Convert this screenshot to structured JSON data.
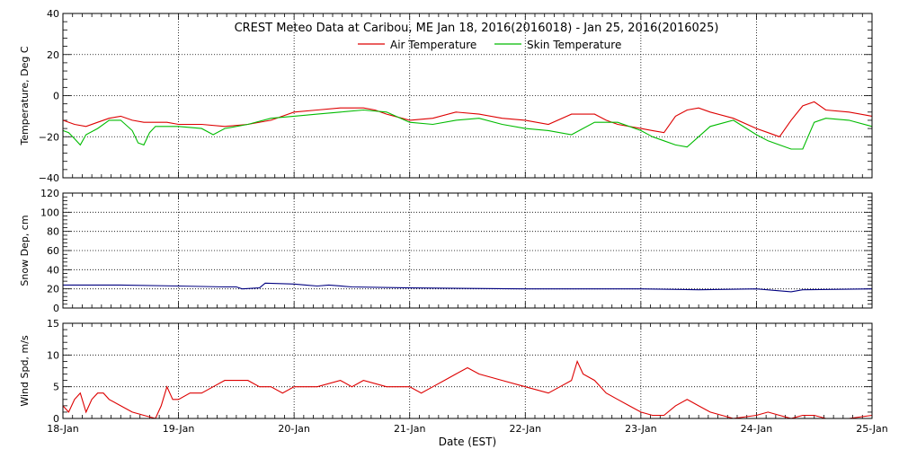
{
  "chart_data": {
    "title": "CREST Meteo Data at Caribou, ME   Jan 18, 2016(2016018) - Jan 25, 2016(2016025)",
    "xlabel": "Date (EST)",
    "x_ticks": [
      "18-Jan",
      "19-Jan",
      "20-Jan",
      "21-Jan",
      "22-Jan",
      "23-Jan",
      "24-Jan",
      "25-Jan"
    ],
    "x_range": [
      18,
      25
    ],
    "grid": true,
    "panels": [
      {
        "type": "line",
        "ylabel": "Temperature, Deg C",
        "ylim": [
          -40,
          40
        ],
        "y_ticks": [
          "40",
          "20",
          "0",
          "−20",
          "−40"
        ],
        "legend": "top-center",
        "series": [
          {
            "name": "Air Temperature",
            "color": "#dd0000",
            "x": [
              18.0,
              18.1,
              18.2,
              18.3,
              18.4,
              18.5,
              18.6,
              18.7,
              18.8,
              18.9,
              19.0,
              19.2,
              19.4,
              19.6,
              19.8,
              20.0,
              20.2,
              20.4,
              20.6,
              20.7,
              20.8,
              21.0,
              21.2,
              21.4,
              21.6,
              21.8,
              22.0,
              22.2,
              22.4,
              22.6,
              22.7,
              22.8,
              23.0,
              23.1,
              23.2,
              23.3,
              23.4,
              23.5,
              23.6,
              23.8,
              24.0,
              24.1,
              24.2,
              24.3,
              24.4,
              24.5,
              24.6,
              24.8,
              25.0
            ],
            "values": [
              -12,
              -14,
              -15,
              -13,
              -11,
              -10,
              -12,
              -13,
              -13,
              -13,
              -14,
              -14,
              -15,
              -14,
              -12,
              -8,
              -7,
              -6,
              -6,
              -7,
              -9,
              -12,
              -11,
              -8,
              -9,
              -11,
              -12,
              -14,
              -9,
              -9,
              -12,
              -14,
              -16,
              -17,
              -18,
              -10,
              -7,
              -6,
              -8,
              -11,
              -16,
              -18,
              -20,
              -12,
              -5,
              -3,
              -7,
              -8,
              -10
            ]
          },
          {
            "name": "Skin Temperature",
            "color": "#00bb00",
            "x": [
              18.0,
              18.05,
              18.1,
              18.15,
              18.2,
              18.3,
              18.4,
              18.5,
              18.6,
              18.65,
              18.7,
              18.75,
              18.8,
              19.0,
              19.2,
              19.3,
              19.4,
              19.6,
              19.8,
              20.0,
              20.2,
              20.4,
              20.6,
              20.8,
              21.0,
              21.2,
              21.4,
              21.6,
              21.8,
              22.0,
              22.2,
              22.4,
              22.6,
              22.8,
              23.0,
              23.1,
              23.2,
              23.3,
              23.4,
              23.6,
              23.8,
              24.0,
              24.1,
              24.2,
              24.3,
              24.4,
              24.5,
              24.6,
              24.8,
              25.0
            ],
            "values": [
              -17,
              -18,
              -21,
              -24,
              -19,
              -16,
              -12,
              -12,
              -17,
              -23,
              -24,
              -18,
              -15,
              -15,
              -16,
              -19,
              -16,
              -14,
              -11,
              -10,
              -9,
              -8,
              -7,
              -8,
              -13,
              -14,
              -12,
              -11,
              -14,
              -16,
              -17,
              -19,
              -13,
              -13,
              -17,
              -20,
              -22,
              -24,
              -25,
              -15,
              -12,
              -19,
              -22,
              -24,
              -26,
              -26,
              -13,
              -11,
              -12,
              -15
            ]
          }
        ]
      },
      {
        "type": "line",
        "ylabel": "Snow Dep, cm",
        "ylim": [
          0,
          120
        ],
        "y_ticks": [
          "0",
          "20",
          "40",
          "60",
          "80",
          "100",
          "120"
        ],
        "series": [
          {
            "color": "#000080",
            "x": [
              18.0,
              18.5,
              19.0,
              19.4,
              19.5,
              19.55,
              19.7,
              19.75,
              20.0,
              20.1,
              20.2,
              20.3,
              20.5,
              21.0,
              22.0,
              23.0,
              23.5,
              24.0,
              24.3,
              24.4,
              25.0
            ],
            "values": [
              24,
              24,
              23,
              22,
              22,
              20,
              21,
              26,
              25,
              24,
              23,
              24,
              22,
              21,
              20,
              20,
              19,
              20,
              17,
              19,
              20
            ]
          }
        ]
      },
      {
        "type": "line",
        "ylabel": "Wind Spd, m/s",
        "ylim": [
          0,
          15
        ],
        "y_ticks": [
          "0",
          "5",
          "10",
          "15"
        ],
        "series": [
          {
            "color": "#dd0000",
            "x": [
              18.0,
              18.05,
              18.1,
              18.15,
              18.2,
              18.25,
              18.3,
              18.35,
              18.4,
              18.5,
              18.6,
              18.7,
              18.8,
              18.85,
              18.9,
              18.95,
              19.0,
              19.1,
              19.2,
              19.3,
              19.4,
              19.5,
              19.6,
              19.7,
              19.8,
              19.9,
              20.0,
              20.2,
              20.4,
              20.5,
              20.6,
              20.8,
              21.0,
              21.1,
              21.2,
              21.3,
              21.4,
              21.5,
              21.6,
              21.8,
              22.0,
              22.2,
              22.3,
              22.4,
              22.45,
              22.5,
              22.6,
              22.7,
              22.8,
              22.9,
              23.0,
              23.1,
              23.2,
              23.3,
              23.4,
              23.5,
              23.6,
              23.7,
              23.8,
              24.0,
              24.1,
              24.2,
              24.3,
              24.4,
              24.5,
              24.6,
              24.8,
              25.0
            ],
            "values": [
              2,
              1,
              3,
              4,
              1,
              3,
              4,
              4,
              3,
              2,
              1,
              0.5,
              0,
              2,
              5,
              3,
              3,
              4,
              4,
              5,
              6,
              6,
              6,
              5,
              5,
              4,
              5,
              5,
              6,
              5,
              6,
              5,
              5,
              4,
              5,
              6,
              7,
              8,
              7,
              6,
              5,
              4,
              5,
              6,
              9,
              7,
              6,
              4,
              3,
              2,
              1,
              0.5,
              0.5,
              2,
              3,
              2,
              1,
              0.5,
              0,
              0.5,
              1,
              0.5,
              0,
              0.5,
              0.5,
              0,
              0,
              0.5
            ]
          }
        ]
      }
    ]
  }
}
